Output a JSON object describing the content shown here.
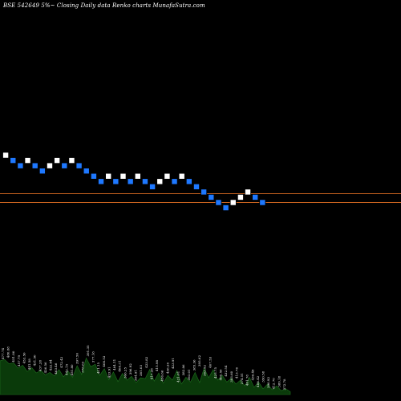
{
  "chart_data": {
    "type": "renko",
    "title": "BSE 542649 5%~  Closing Daily data  Renko  charts MunafaSutra.com",
    "colors": {
      "background": "#000000",
      "up_brick": "#ffffff",
      "down_brick": "#1e78ff",
      "reference_line": "#c8631f",
      "volume_fill": "#0a3a0a",
      "volume_edge": "#1f6e1f"
    },
    "bricks": [
      "up",
      "down",
      "down",
      "up",
      "down",
      "down",
      "up",
      "up",
      "down",
      "up",
      "down",
      "down",
      "down",
      "down",
      "up",
      "down",
      "up",
      "down",
      "up",
      "down",
      "down",
      "up",
      "up",
      "down",
      "up",
      "down",
      "down",
      "down",
      "down",
      "down",
      "down",
      "up",
      "up",
      "up",
      "down",
      "down"
    ],
    "volume": [
      0.7,
      0.73,
      0.64,
      0.66,
      0.55,
      0.61,
      0.48,
      0.56,
      0.45,
      0.5,
      0.41,
      0.46,
      0.39,
      0.52,
      0.37,
      0.49,
      0.36,
      0.6,
      0.42,
      0.76,
      0.58,
      0.63,
      0.4,
      0.54,
      0.31,
      0.47,
      0.27,
      0.44,
      0.3,
      0.38,
      0.25,
      0.35,
      0.33,
      0.52,
      0.28,
      0.45,
      0.24,
      0.4,
      0.3,
      0.5,
      0.22,
      0.36,
      0.26,
      0.46,
      0.25,
      0.55,
      0.35,
      0.52,
      0.3,
      0.4,
      0.26,
      0.34,
      0.22,
      0.3,
      0.18,
      0.36,
      0.15,
      0.26,
      0.12,
      0.22,
      0.1,
      0.18,
      0.08,
      0.12,
      0.06
    ],
    "volume_labels": [
      "477.74",
      "480.88",
      "451.80",
      "457.79",
      "453.50",
      "441.58",
      "431.50",
      "437.28",
      "426.56",
      "422.84",
      "463.46",
      "472.42",
      "442.15",
      "451.80",
      "397.50",
      "378.63",
      "391.35",
      "377.16",
      "411.15",
      "408.52",
      "433.91",
      "404.11",
      "408.31",
      "366.25",
      "396.92",
      "384.91",
      "381.03",
      "423.82",
      "417.28",
      "415.98",
      "450.66",
      "436.26",
      "423.91",
      "421.61",
      "382.86",
      "393.01",
      "385.36",
      "395.62",
      "383.52",
      "407.53",
      "425.75",
      "405.50",
      "432.54",
      "383.60",
      "413.76",
      "374.51",
      "401.78",
      "439.48",
      "408.42",
      "350.58",
      "396.92",
      "412.70",
      "380.18",
      "372.78"
    ]
  }
}
